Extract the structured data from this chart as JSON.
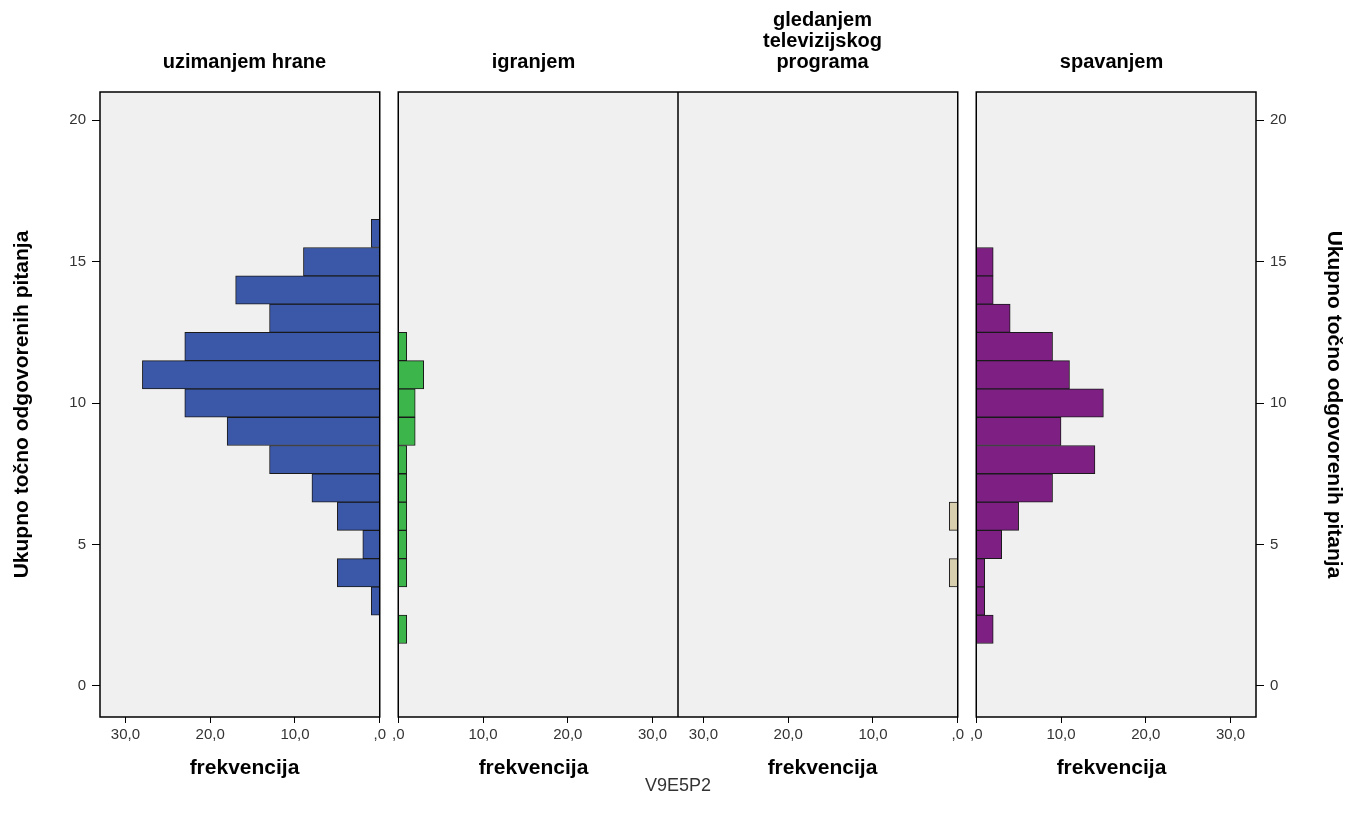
{
  "chart_data": [
    {
      "type": "histogram",
      "orientation": "horizontal",
      "title": "uzimanjem hrane",
      "xlabel": "frekvencija",
      "ylabel": "Ukupno točno odgovorenih pitanja",
      "bins": [
        1.5,
        2.5,
        3.5,
        4.5,
        5.5,
        6.5,
        7.5,
        8.5,
        9.5,
        10.5,
        11.5,
        12.5,
        13.5,
        14.5,
        15.5,
        16.5
      ],
      "values": [
        0,
        1,
        5,
        2,
        5,
        8,
        13,
        18,
        23,
        28,
        23,
        13,
        17,
        9,
        1
      ],
      "color": "#3a57a8",
      "xlim": [
        33,
        0
      ],
      "xticks": [
        {
          "value": 30,
          "label": "30,0"
        },
        {
          "value": 20,
          "label": "20,0"
        },
        {
          "value": 10,
          "label": "10,0"
        },
        {
          "value": 0,
          "label": ",0"
        }
      ],
      "ylim": [
        -1.1,
        21
      ],
      "yticks": [
        0,
        5,
        10,
        15,
        20
      ]
    },
    {
      "type": "histogram",
      "orientation": "horizontal",
      "title": "igranjem",
      "xlabel": "frekvencija",
      "annotations": [
        "V9E5P2"
      ],
      "bins": [
        1.5,
        2.5,
        3.5,
        4.5,
        5.5,
        6.5,
        7.5,
        8.5,
        9.5,
        10.5,
        11.5,
        12.5,
        13.5,
        14.5,
        15.5,
        16.5
      ],
      "values": [
        1,
        0,
        1,
        1,
        1,
        1,
        1,
        2,
        2,
        3,
        1,
        0,
        0,
        0,
        0
      ],
      "color": "#3cb54a",
      "xlim": [
        0,
        33
      ],
      "xticks": [
        {
          "value": 0,
          "label": ",0"
        },
        {
          "value": 10,
          "label": "10,0"
        },
        {
          "value": 20,
          "label": "20,0"
        },
        {
          "value": 30,
          "label": "30,0"
        }
      ],
      "ylim": [
        -1.1,
        21
      ],
      "tick_labels": "x"
    },
    {
      "type": "histogram",
      "orientation": "horizontal",
      "title": "gledanjem televizijskog programa",
      "xlabel": "frekvencija",
      "bins": [
        1.5,
        2.5,
        3.5,
        4.5,
        5.5,
        6.5,
        7.5,
        8.5,
        9.5,
        10.5,
        11.5,
        12.5,
        13.5,
        14.5,
        15.5,
        16.5
      ],
      "values": [
        0,
        0,
        1,
        0,
        1,
        0,
        0,
        0,
        0,
        0,
        0,
        0,
        0,
        0,
        0
      ],
      "color": "#d8cfae",
      "xlim": [
        33,
        0
      ],
      "xticks": [
        {
          "value": 30,
          "label": "30,0"
        },
        {
          "value": 20,
          "label": "20,0"
        },
        {
          "value": 10,
          "label": "10,0"
        },
        {
          "value": 0,
          "label": ",0"
        }
      ],
      "ylim": [
        -1.1,
        21
      ],
      "tick_labels": "x"
    },
    {
      "type": "histogram",
      "orientation": "horizontal",
      "title": "spavanjem",
      "xlabel": "frekvencija",
      "ylabel": "Ukupno točno odgovorenih pitanja",
      "bins": [
        1.5,
        2.5,
        3.5,
        4.5,
        5.5,
        6.5,
        7.5,
        8.5,
        9.5,
        10.5,
        11.5,
        12.5,
        13.5,
        14.5,
        15.5,
        16.5
      ],
      "values": [
        2,
        1,
        1,
        3,
        5,
        9,
        14,
        10,
        15,
        11,
        9,
        4,
        2,
        2,
        0
      ],
      "color": "#7d1f83",
      "xlim": [
        0,
        33
      ],
      "xticks": [
        {
          "value": 0,
          "label": ",0"
        },
        {
          "value": 10,
          "label": "10,0"
        },
        {
          "value": 20,
          "label": "20,0"
        },
        {
          "value": 30,
          "label": "30,0"
        }
      ],
      "ylim": [
        -1.1,
        21
      ],
      "yticks": [
        0,
        5,
        10,
        15,
        20
      ]
    }
  ]
}
